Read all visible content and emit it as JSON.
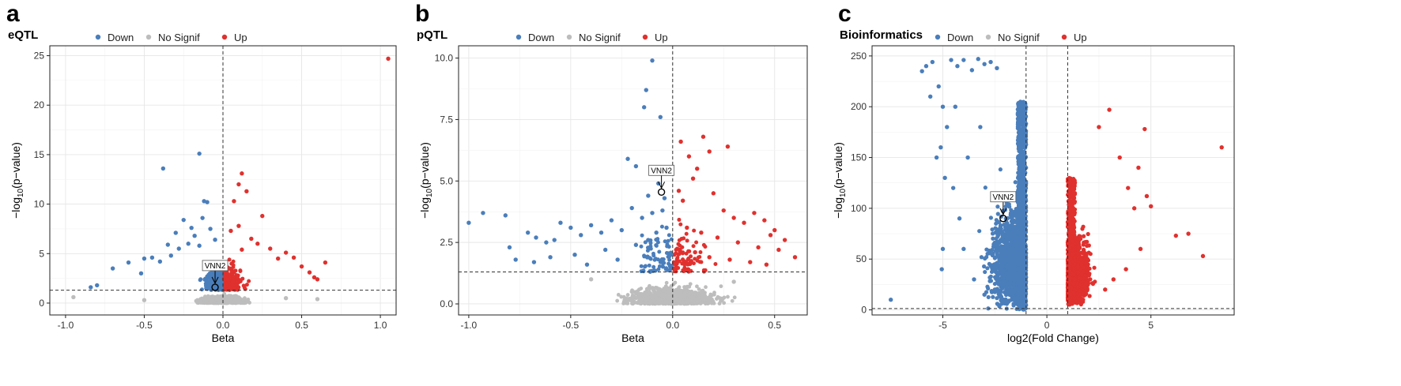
{
  "colors": {
    "down": "#4a7ebb",
    "nosig": "#bdbdbd",
    "up": "#e0312e"
  },
  "legend": {
    "down": "Down",
    "nosig": "No Signif",
    "up": "Up"
  },
  "ylabel_prefix": "−log",
  "ylabel_sub": "10",
  "ylabel_suffix": "(p−value)",
  "chart_data": [
    {
      "panel": "a",
      "title": "eQTL",
      "type": "scatter",
      "xlabel": "Beta",
      "xlim": [
        -1.1,
        1.1
      ],
      "ylim": [
        -1.2,
        26
      ],
      "xticks": [
        -1.0,
        -0.5,
        0.0,
        0.5,
        1.0
      ],
      "xtick_labels": [
        "-1.0",
        "-0.5",
        "0.0",
        "0.5",
        "1.0"
      ],
      "yticks": [
        0,
        5,
        10,
        15,
        20,
        25
      ],
      "ytick_labels": [
        "0",
        "5",
        "10",
        "15",
        "20",
        "25"
      ],
      "hline": 1.3,
      "vlines": [
        0
      ],
      "annotation": {
        "label": "VNN2",
        "x": -0.05,
        "y": 1.6
      },
      "series": [
        {
          "name": "Down",
          "points": [
            [
              -0.15,
              15.1
            ],
            [
              -0.38,
              13.6
            ],
            [
              -0.12,
              10.3
            ],
            [
              -0.1,
              10.2
            ],
            [
              -0.13,
              8.6
            ],
            [
              -0.25,
              8.4
            ],
            [
              -0.2,
              7.6
            ],
            [
              -0.08,
              7.5
            ],
            [
              -0.3,
              7.1
            ],
            [
              -0.18,
              6.8
            ],
            [
              -0.05,
              6.4
            ],
            [
              -0.22,
              6.0
            ],
            [
              -0.35,
              5.9
            ],
            [
              -0.28,
              5.5
            ],
            [
              -0.15,
              5.8
            ],
            [
              -0.45,
              4.6
            ],
            [
              -0.5,
              4.5
            ],
            [
              -0.4,
              4.2
            ],
            [
              -0.33,
              4.8
            ],
            [
              -0.6,
              4.1
            ],
            [
              -0.7,
              3.5
            ],
            [
              -0.52,
              3.0
            ],
            [
              -0.8,
              1.8
            ],
            [
              -0.84,
              1.6
            ]
          ]
        },
        {
          "name": "Up",
          "points": [
            [
              1.05,
              24.7
            ],
            [
              0.12,
              13.1
            ],
            [
              0.1,
              12.0
            ],
            [
              0.15,
              11.3
            ],
            [
              0.07,
              10.3
            ],
            [
              0.25,
              8.8
            ],
            [
              0.1,
              7.8
            ],
            [
              0.05,
              7.3
            ],
            [
              0.18,
              6.5
            ],
            [
              0.22,
              6.0
            ],
            [
              0.3,
              5.5
            ],
            [
              0.12,
              5.4
            ],
            [
              0.4,
              5.1
            ],
            [
              0.35,
              4.5
            ],
            [
              0.45,
              4.6
            ],
            [
              0.5,
              3.7
            ],
            [
              0.55,
              3.1
            ],
            [
              0.65,
              4.1
            ],
            [
              0.58,
              2.6
            ],
            [
              0.6,
              2.4
            ]
          ]
        },
        {
          "name": "No Signif",
          "points": [
            [
              -0.95,
              0.6
            ],
            [
              -0.5,
              0.3
            ],
            [
              0.4,
              0.5
            ],
            [
              0.6,
              0.4
            ]
          ]
        }
      ]
    },
    {
      "panel": "b",
      "title": "pQTL",
      "type": "scatter",
      "xlabel": "Beta",
      "xlim": [
        -1.05,
        0.66
      ],
      "ylim": [
        -0.45,
        10.5
      ],
      "xticks": [
        -1.0,
        -0.5,
        0.0,
        0.5
      ],
      "xtick_labels": [
        "-1.0",
        "-0.5",
        "0.0",
        "0.5"
      ],
      "yticks": [
        0,
        2.5,
        5,
        7.5,
        10
      ],
      "ytick_labels": [
        "0.0",
        "2.5",
        "5.0",
        "7.5",
        "10.0"
      ],
      "hline": 1.3,
      "vlines": [
        0
      ],
      "annotation": {
        "label": "VNN2",
        "x": -0.055,
        "y": 4.55
      },
      "series": [
        {
          "name": "Down",
          "points": [
            [
              -0.1,
              9.9
            ],
            [
              -0.13,
              8.7
            ],
            [
              -0.14,
              8.0
            ],
            [
              -0.06,
              7.6
            ],
            [
              -0.22,
              5.9
            ],
            [
              -0.18,
              5.6
            ],
            [
              -0.07,
              4.9
            ],
            [
              -0.04,
              4.3
            ],
            [
              -0.12,
              4.4
            ],
            [
              -1.0,
              3.3
            ],
            [
              -0.93,
              3.7
            ],
            [
              -0.82,
              3.6
            ],
            [
              -0.8,
              2.3
            ],
            [
              -0.71,
              2.9
            ],
            [
              -0.67,
              2.7
            ],
            [
              -0.62,
              2.5
            ],
            [
              -0.58,
              2.6
            ],
            [
              -0.55,
              3.3
            ],
            [
              -0.5,
              3.1
            ],
            [
              -0.45,
              2.8
            ],
            [
              -0.4,
              3.2
            ],
            [
              -0.35,
              2.9
            ],
            [
              -0.3,
              3.4
            ],
            [
              -0.25,
              3.0
            ],
            [
              -0.2,
              3.9
            ],
            [
              -0.15,
              3.5
            ],
            [
              -0.1,
              3.7
            ],
            [
              -0.05,
              3.8
            ],
            [
              -0.77,
              1.8
            ],
            [
              -0.68,
              1.7
            ],
            [
              -0.6,
              1.9
            ],
            [
              -0.48,
              2.0
            ],
            [
              -0.42,
              1.6
            ],
            [
              -0.33,
              2.2
            ],
            [
              -0.27,
              1.8
            ],
            [
              -0.18,
              2.4
            ],
            [
              -0.12,
              2.6
            ],
            [
              -0.08,
              2.9
            ],
            [
              -0.03,
              3.1
            ]
          ]
        },
        {
          "name": "Up",
          "points": [
            [
              0.15,
              6.8
            ],
            [
              0.27,
              6.4
            ],
            [
              0.04,
              6.6
            ],
            [
              0.18,
              6.2
            ],
            [
              0.08,
              6.0
            ],
            [
              0.12,
              5.5
            ],
            [
              0.1,
              5.1
            ],
            [
              0.2,
              4.5
            ],
            [
              0.03,
              4.6
            ],
            [
              0.05,
              4.2
            ],
            [
              0.25,
              3.8
            ],
            [
              0.3,
              3.5
            ],
            [
              0.35,
              3.3
            ],
            [
              0.4,
              3.7
            ],
            [
              0.45,
              3.4
            ],
            [
              0.5,
              3.0
            ],
            [
              0.55,
              2.6
            ],
            [
              0.48,
              2.8
            ],
            [
              0.6,
              1.9
            ],
            [
              0.52,
              2.2
            ],
            [
              0.42,
              2.3
            ],
            [
              0.32,
              2.5
            ],
            [
              0.22,
              2.7
            ],
            [
              0.14,
              2.9
            ],
            [
              0.07,
              3.1
            ],
            [
              0.38,
              1.7
            ],
            [
              0.28,
              1.8
            ],
            [
              0.18,
              1.9
            ],
            [
              0.46,
              1.6
            ],
            [
              0.11,
              2.1
            ]
          ]
        },
        {
          "name": "No Signif",
          "points": [
            [
              -0.4,
              1.0
            ],
            [
              0.3,
              0.9
            ],
            [
              -0.2,
              0.5
            ],
            [
              0.15,
              0.4
            ]
          ]
        }
      ]
    },
    {
      "panel": "c",
      "title": "Bioinformatics",
      "type": "scatter",
      "xlabel": "log2(Fold Change)",
      "xlim": [
        -8.4,
        9.0
      ],
      "ylim": [
        -5,
        260
      ],
      "xticks": [
        -5,
        0,
        5
      ],
      "xtick_labels": [
        "-5",
        "0",
        "5"
      ],
      "yticks": [
        0,
        50,
        100,
        150,
        200,
        250
      ],
      "ytick_labels": [
        "0",
        "50",
        "100",
        "150",
        "200",
        "250"
      ],
      "hline": 1.3,
      "vlines": [
        -1,
        1
      ],
      "annotation": {
        "label": "VNN2",
        "x": -2.1,
        "y": 90
      },
      "series": [
        {
          "name": "Down",
          "points": [
            [
              -6.0,
              235
            ],
            [
              -5.8,
              240
            ],
            [
              -5.5,
              244
            ],
            [
              -5.2,
              220
            ],
            [
              -5.6,
              210
            ],
            [
              -5.0,
              200
            ],
            [
              -4.8,
              180
            ],
            [
              -5.1,
              160
            ],
            [
              -5.3,
              150
            ],
            [
              -4.9,
              130
            ],
            [
              -5.0,
              60
            ],
            [
              -5.05,
              40
            ],
            [
              -4.6,
              246
            ],
            [
              -4.3,
              240
            ],
            [
              -4.0,
              246
            ],
            [
              -3.6,
              236
            ],
            [
              -3.3,
              247
            ],
            [
              -3.0,
              242
            ],
            [
              -2.7,
              244
            ],
            [
              -2.4,
              238
            ],
            [
              -7.5,
              10
            ],
            [
              -4.5,
              120
            ],
            [
              -4.0,
              60
            ],
            [
              -3.5,
              30
            ],
            [
              -3.0,
              15
            ],
            [
              -2.5,
              20
            ],
            [
              -4.2,
              90
            ],
            [
              -3.8,
              150
            ],
            [
              -4.4,
              200
            ],
            [
              -3.2,
              180
            ]
          ]
        },
        {
          "name": "Up",
          "points": [
            [
              8.4,
              160
            ],
            [
              6.8,
              75
            ],
            [
              6.2,
              73
            ],
            [
              7.5,
              53
            ],
            [
              4.7,
              178
            ],
            [
              3.0,
              197
            ],
            [
              4.2,
              100
            ],
            [
              3.5,
              150
            ],
            [
              2.5,
              180
            ],
            [
              4.8,
              112
            ],
            [
              5.0,
              102
            ],
            [
              4.5,
              60
            ],
            [
              3.8,
              40
            ],
            [
              3.2,
              30
            ],
            [
              2.8,
              20
            ],
            [
              4.4,
              140
            ],
            [
              3.9,
              120
            ]
          ]
        },
        {
          "name": "No Signif",
          "points": []
        }
      ]
    }
  ]
}
